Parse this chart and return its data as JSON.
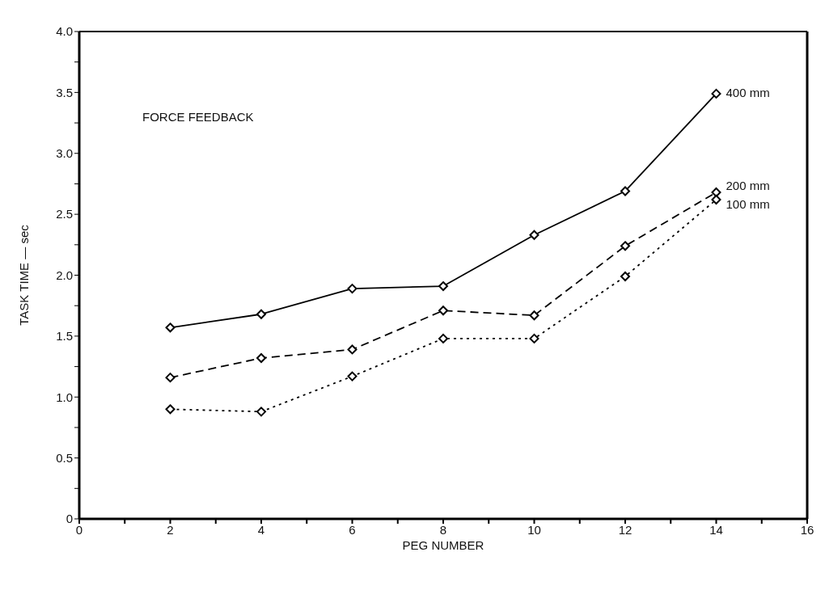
{
  "chart_data": {
    "type": "line",
    "x": [
      2,
      4,
      6,
      8,
      10,
      12,
      14
    ],
    "series": [
      {
        "name": "400 mm",
        "color": "#000000",
        "line_style": "solid",
        "values": [
          1.57,
          1.68,
          1.89,
          1.91,
          2.33,
          2.69,
          3.49
        ]
      },
      {
        "name": "200 mm",
        "color": "#000000",
        "line_style": "dashed",
        "values": [
          1.16,
          1.32,
          1.39,
          1.71,
          1.67,
          2.24,
          2.68
        ]
      },
      {
        "name": "100 mm",
        "color": "#000000",
        "line_style": "dotted",
        "values": [
          0.9,
          0.88,
          1.17,
          1.48,
          1.48,
          1.99,
          2.62
        ]
      }
    ],
    "xlabel": "PEG NUMBER",
    "ylabel": "TASK TIME — sec",
    "annotations": [
      "FORCE FEEDBACK"
    ],
    "xlim": [
      0,
      16
    ],
    "xticks": [
      0,
      {
        "value": 1,
        "label": null
      },
      2,
      {
        "value": 3,
        "label": null
      },
      4,
      {
        "value": 5,
        "label": null
      },
      6,
      {
        "value": 7,
        "label": null
      },
      8,
      {
        "value": 9,
        "label": null
      },
      10,
      {
        "value": 11,
        "label": null
      },
      12,
      {
        "value": 13,
        "label": null
      },
      14,
      {
        "value": 15,
        "label": null
      },
      16
    ],
    "ylim": [
      0,
      4
    ],
    "yticks": [
      {
        "value": 0,
        "label": "0"
      },
      {
        "value": 0.25,
        "label": null
      },
      {
        "value": 0.5,
        "label": "0.5"
      },
      {
        "value": 0.75,
        "label": null
      },
      {
        "value": 1,
        "label": "1.0"
      },
      {
        "value": 1.25,
        "label": null
      },
      {
        "value": 1.5,
        "label": "1.5"
      },
      {
        "value": 1.75,
        "label": null
      },
      {
        "value": 2,
        "label": "2.0"
      },
      {
        "value": 2.25,
        "label": null
      },
      {
        "value": 2.5,
        "label": "2.5"
      },
      {
        "value": 2.75,
        "label": null
      },
      {
        "value": 3,
        "label": "3.0"
      },
      {
        "value": 3.25,
        "label": null
      },
      {
        "value": 3.5,
        "label": "3.5"
      },
      {
        "value": 3.75,
        "label": null
      },
      {
        "value": 4,
        "label": "4.0"
      }
    ],
    "marker": "diamond"
  }
}
